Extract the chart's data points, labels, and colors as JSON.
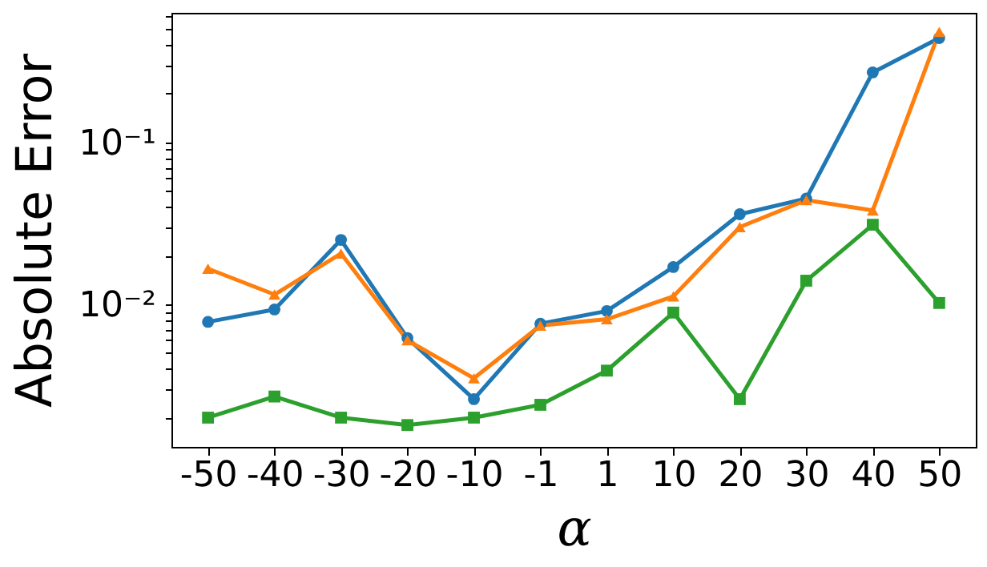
{
  "chart_data": {
    "type": "line",
    "xlabel": "α",
    "ylabel": "Absolute Error",
    "categories": [
      "-50",
      "-40",
      "-30",
      "-20",
      "-10",
      "-1",
      "1",
      "10",
      "20",
      "30",
      "40",
      "50"
    ],
    "series": [
      {
        "color": "#1f77b4",
        "marker": "circle",
        "values": [
          0.0078,
          0.0093,
          0.025,
          0.0062,
          0.0026,
          0.0076,
          0.0091,
          0.017,
          0.036,
          0.045,
          0.27,
          0.44
        ]
      },
      {
        "color": "#ff7f0e",
        "marker": "triangle",
        "values": [
          0.0166,
          0.0115,
          0.0206,
          0.006,
          0.0035,
          0.0074,
          0.0081,
          0.0112,
          0.03,
          0.044,
          0.038,
          0.48
        ]
      },
      {
        "color": "#2ca02c",
        "marker": "square",
        "values": [
          0.002,
          0.0027,
          0.002,
          0.0018,
          0.002,
          0.0024,
          0.0039,
          0.0089,
          0.0026,
          0.014,
          0.031,
          0.0102
        ]
      }
    ],
    "log": "y",
    "ylim": [
      0.00132,
      0.63
    ],
    "yticks": [
      {
        "value": 0.002,
        "label": null
      },
      {
        "value": 0.003,
        "label": null
      },
      {
        "value": 0.004,
        "label": null
      },
      {
        "value": 0.005,
        "label": null
      },
      {
        "value": 0.006,
        "label": null
      },
      {
        "value": 0.007,
        "label": null
      },
      {
        "value": 0.008,
        "label": null
      },
      {
        "value": 0.009,
        "label": null
      },
      {
        "value": 0.01,
        "label": "10⁻²"
      },
      {
        "value": 0.02,
        "label": null
      },
      {
        "value": 0.03,
        "label": null
      },
      {
        "value": 0.04,
        "label": null
      },
      {
        "value": 0.05,
        "label": null
      },
      {
        "value": 0.06,
        "label": null
      },
      {
        "value": 0.07,
        "label": null
      },
      {
        "value": 0.08,
        "label": null
      },
      {
        "value": 0.09,
        "label": null
      },
      {
        "value": 0.1,
        "label": "10⁻¹"
      },
      {
        "value": 0.2,
        "label": null
      },
      {
        "value": 0.3,
        "label": null
      },
      {
        "value": 0.4,
        "label": null
      },
      {
        "value": 0.5,
        "label": null
      },
      {
        "value": 0.6,
        "label": null
      }
    ],
    "grid": false
  }
}
